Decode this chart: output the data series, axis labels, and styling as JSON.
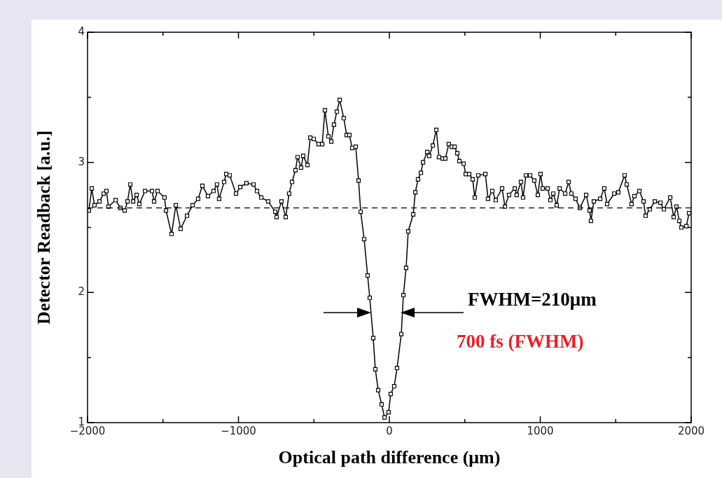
{
  "chart_data": {
    "type": "line",
    "xlabel": "Optical path difference (μm)",
    "ylabel": "Detector Readback [a.u.]",
    "x": [
      -1991,
      -1972,
      -1954,
      -1921,
      -1893,
      -1875,
      -1861,
      -1814,
      -1782,
      -1754,
      -1735,
      -1717,
      -1698,
      -1675,
      -1657,
      -1619,
      -1573,
      -1559,
      -1536,
      -1490,
      -1480,
      -1443,
      -1415,
      -1383,
      -1341,
      -1304,
      -1267,
      -1239,
      -1202,
      -1165,
      -1142,
      -1128,
      -1095,
      -1081,
      -1058,
      -1016,
      -988,
      -947,
      -900,
      -877,
      -849,
      -803,
      -756,
      -747,
      -715,
      -687,
      -664,
      -645,
      -622,
      -608,
      -585,
      -571,
      -543,
      -524,
      -501,
      -469,
      -445,
      -427,
      -404,
      -385,
      -367,
      -348,
      -329,
      -302,
      -283,
      -265,
      -246,
      -223,
      -204,
      -190,
      -167,
      -144,
      -130,
      -107,
      -93,
      -74,
      -51,
      -32,
      -5,
      9,
      32,
      51,
      79,
      93,
      111,
      125,
      158,
      172,
      190,
      209,
      223,
      251,
      264,
      288,
      311,
      329,
      353,
      371,
      394,
      413,
      432,
      450,
      464,
      492,
      506,
      529,
      552,
      566,
      589,
      636,
      654,
      682,
      705,
      747,
      766,
      793,
      831,
      844,
      872,
      886,
      905,
      933,
      960,
      984,
      1002,
      1016,
      1049,
      1067,
      1086,
      1109,
      1128,
      1165,
      1188,
      1206,
      1234,
      1262,
      1304,
      1327,
      1336,
      1355,
      1397,
      1424,
      1443,
      1490,
      1517,
      1559,
      1573,
      1605,
      1624,
      1657,
      1684,
      1698,
      1726,
      1759,
      1796,
      1819,
      1861,
      1884,
      1903,
      1921,
      1935,
      1968,
      1986
    ],
    "series": [
      {
        "color": "#000000",
        "values": [
          2.63,
          2.8,
          2.67,
          2.7,
          2.76,
          2.78,
          2.66,
          2.71,
          2.65,
          2.63,
          2.7,
          2.83,
          2.7,
          2.75,
          2.68,
          2.78,
          2.78,
          2.7,
          2.78,
          2.73,
          2.63,
          2.45,
          2.67,
          2.49,
          2.59,
          2.67,
          2.72,
          2.82,
          2.74,
          2.78,
          2.83,
          2.72,
          2.85,
          2.91,
          2.9,
          2.76,
          2.81,
          2.84,
          2.83,
          2.78,
          2.73,
          2.7,
          2.62,
          2.58,
          2.7,
          2.58,
          2.76,
          2.85,
          2.94,
          3.04,
          2.96,
          3.05,
          2.98,
          3.19,
          3.18,
          3.14,
          3.14,
          3.4,
          3.2,
          3.16,
          3.29,
          3.39,
          3.48,
          3.34,
          3.21,
          3.21,
          3.11,
          3.12,
          2.86,
          2.62,
          2.41,
          2.13,
          1.96,
          1.65,
          1.41,
          1.25,
          1.14,
          1.04,
          1.08,
          1.22,
          1.28,
          1.42,
          1.68,
          1.98,
          2.19,
          2.47,
          2.6,
          2.77,
          2.87,
          2.92,
          3.0,
          3.08,
          3.05,
          3.13,
          3.25,
          3.04,
          3.03,
          3.03,
          3.14,
          3.12,
          3.12,
          3.07,
          3.01,
          2.99,
          2.91,
          2.91,
          2.87,
          2.73,
          2.9,
          2.91,
          2.72,
          2.78,
          2.71,
          2.8,
          2.66,
          2.75,
          2.8,
          2.75,
          2.85,
          2.73,
          2.9,
          2.9,
          2.86,
          2.75,
          2.91,
          2.8,
          2.8,
          2.71,
          2.76,
          2.67,
          2.8,
          2.76,
          2.85,
          2.76,
          2.72,
          2.65,
          2.75,
          2.63,
          2.55,
          2.7,
          2.72,
          2.8,
          2.68,
          2.76,
          2.77,
          2.9,
          2.83,
          2.68,
          2.74,
          2.78,
          2.7,
          2.59,
          2.64,
          2.7,
          2.69,
          2.64,
          2.73,
          2.58,
          2.66,
          2.55,
          2.5,
          2.51,
          2.61
        ]
      }
    ],
    "xlim": [
      -2000,
      2000
    ],
    "xticks": [
      {
        "value": -2000,
        "label": "−2000"
      },
      {
        "value": -1500,
        "label": null
      },
      {
        "value": -1000,
        "label": "−1000"
      },
      {
        "value": -500,
        "label": null
      },
      0,
      {
        "value": 500,
        "label": null
      },
      1000,
      {
        "value": 1500,
        "label": null
      },
      2000
    ],
    "ylim": [
      1,
      4
    ],
    "yticks": [
      1,
      {
        "value": 1.5,
        "label": null
      },
      2,
      {
        "value": 2.5,
        "label": null
      },
      3,
      {
        "value": 3.5,
        "label": null
      },
      4
    ],
    "ref_lines": [
      {
        "axis": "y",
        "value": 2.65,
        "line_style": "dashed",
        "color": "#000000"
      }
    ],
    "annotations": [
      "FWHM=210μm",
      "700 fs (FWHM)"
    ],
    "marker": "square",
    "line_style": "solid",
    "grid": false,
    "legend": false
  }
}
